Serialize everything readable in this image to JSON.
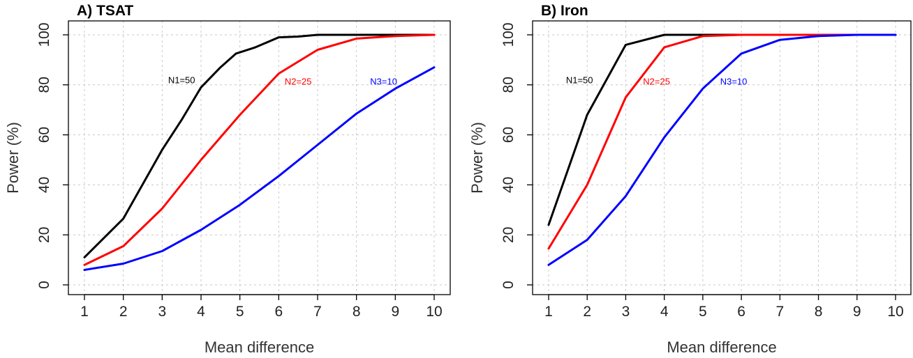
{
  "chart_data": [
    {
      "type": "line",
      "title": "A) TSAT",
      "xlabel": "Mean difference",
      "ylabel": "Power (%)",
      "xlim": [
        1,
        10
      ],
      "ylim": [
        0,
        100
      ],
      "xticks": [
        1,
        2,
        3,
        4,
        5,
        6,
        7,
        8,
        9,
        10
      ],
      "yticks": [
        0,
        20,
        40,
        60,
        80,
        100
      ],
      "grid": true,
      "series": [
        {
          "name": "N1=50",
          "color": "#000000",
          "x": [
            1,
            2,
            3,
            3.5,
            4,
            4.5,
            4.9,
            5.4,
            6,
            6.5,
            7,
            8,
            9,
            10
          ],
          "y": [
            11,
            26.5,
            54,
            66,
            79,
            87,
            92.5,
            95,
            99,
            99.3,
            100,
            100,
            100,
            100
          ],
          "label_at": [
            3.5,
            82
          ]
        },
        {
          "name": "N2=25",
          "color": "#ff0000",
          "x": [
            1,
            2,
            3,
            4,
            5,
            6,
            7,
            8,
            9,
            10
          ],
          "y": [
            8,
            15.5,
            30.5,
            50,
            68,
            84.5,
            94,
            98.5,
            99.5,
            100
          ],
          "label_at": [
            6.5,
            81.5
          ]
        },
        {
          "name": "N3=10",
          "color": "#0000ff",
          "x": [
            1,
            2,
            3,
            4,
            5,
            6,
            7,
            8,
            9,
            10
          ],
          "y": [
            6,
            8.5,
            13.5,
            22,
            32,
            43.5,
            56,
            68.5,
            78.5,
            87
          ],
          "label_at": [
            8.7,
            81.5
          ]
        }
      ]
    },
    {
      "type": "line",
      "title": "B) Iron",
      "xlabel": "Mean difference",
      "ylabel": "Power (%)",
      "xlim": [
        1,
        10
      ],
      "ylim": [
        0,
        100
      ],
      "xticks": [
        1,
        2,
        3,
        4,
        5,
        6,
        7,
        8,
        9,
        10
      ],
      "yticks": [
        0,
        20,
        40,
        60,
        80,
        100
      ],
      "grid": true,
      "series": [
        {
          "name": "N1=50",
          "color": "#000000",
          "x": [
            1,
            2,
            3,
            4,
            5,
            6,
            7,
            8,
            9,
            10
          ],
          "y": [
            24,
            68,
            96,
            100,
            100,
            100,
            100,
            100,
            100,
            100
          ],
          "label_at": [
            1.8,
            82
          ]
        },
        {
          "name": "N2=25",
          "color": "#ff0000",
          "x": [
            1,
            2,
            3,
            4,
            5,
            6,
            7,
            8,
            9,
            10
          ],
          "y": [
            14.5,
            40,
            75,
            95,
            99.5,
            100,
            100,
            100,
            100,
            100
          ],
          "label_at": [
            3.8,
            81.5
          ]
        },
        {
          "name": "N3=10",
          "color": "#0000ff",
          "x": [
            1,
            2,
            3,
            4,
            5,
            6,
            7,
            8,
            9,
            10
          ],
          "y": [
            8,
            18,
            35.5,
            59,
            78.5,
            92.5,
            98,
            99.5,
            100,
            100
          ],
          "label_at": [
            5.8,
            81.5
          ]
        }
      ]
    }
  ]
}
